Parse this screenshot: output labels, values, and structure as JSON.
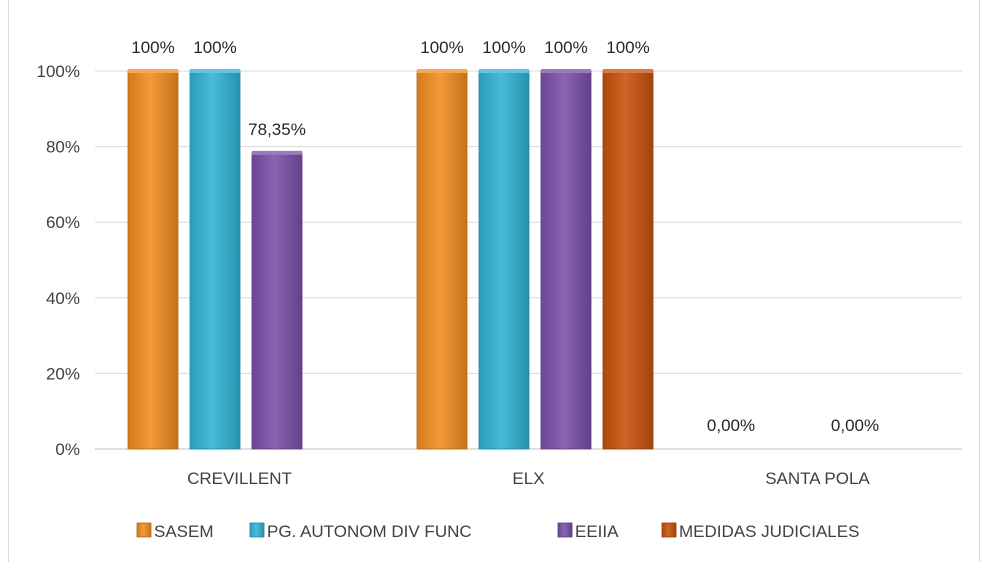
{
  "chart_data": {
    "type": "bar",
    "categories": [
      "CREVILLENT",
      "ELX",
      "SANTA POLA"
    ],
    "series": [
      {
        "name": "SASEM",
        "color": "#f08c1e",
        "values": [
          100,
          100,
          0
        ],
        "labels": [
          "100%",
          "100%",
          "0,00%"
        ]
      },
      {
        "name": "PG. AUTONOM DIV FUNC",
        "color": "#2fb2d4",
        "values": [
          100,
          100,
          null
        ],
        "labels": [
          "100%",
          "100%",
          ""
        ]
      },
      {
        "name": "EEIIA",
        "color": "#7a4fa8",
        "values": [
          78.35,
          100,
          0
        ],
        "labels": [
          "78,35%",
          "100%",
          "0,00%"
        ]
      },
      {
        "name": "MEDIDAS JUDICIALES",
        "color": "#c9500a",
        "values": [
          null,
          100,
          null
        ],
        "labels": [
          "",
          "100%",
          ""
        ]
      }
    ],
    "yticks": [
      "0%",
      "20%",
      "40%",
      "60%",
      "80%",
      "100%"
    ],
    "ylim": [
      0,
      100
    ],
    "grid": true,
    "legend": "bottom",
    "title": "",
    "xlabel": "",
    "ylabel": ""
  }
}
